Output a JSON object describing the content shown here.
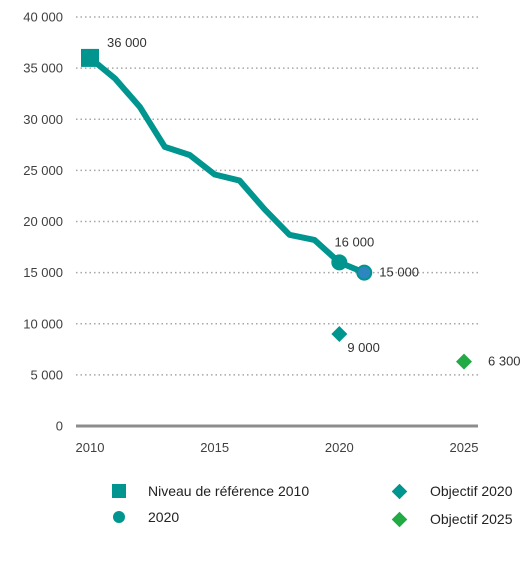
{
  "chart_data": {
    "type": "line",
    "ylim": [
      0,
      40000
    ],
    "xlim": [
      2010,
      2025
    ],
    "y_ticks": [
      0,
      5000,
      10000,
      15000,
      20000,
      25000,
      30000,
      35000,
      40000
    ],
    "y_tick_labels": [
      "0",
      "5 000",
      "10 000",
      "15 000",
      "20 000",
      "25 000",
      "30 000",
      "35 000",
      "40 000"
    ],
    "x_ticks": [
      2010,
      2015,
      2020,
      2025
    ],
    "x_tick_labels": [
      "2010",
      "2015",
      "2020",
      "2025"
    ],
    "grid": "horizontal-dotted",
    "series": [
      {
        "x": [
          2010,
          2011,
          2012,
          2013,
          2014,
          2015,
          2016,
          2017,
          2018,
          2019,
          2020,
          2021
        ],
        "y": [
          36000,
          34000,
          31200,
          27300,
          26500,
          24600,
          24000,
          21200,
          18700,
          18200,
          16000,
          15000
        ],
        "color": "#00958f"
      }
    ],
    "markers": [
      {
        "legend": "Niveau de référence 2010",
        "shape": "square",
        "color": "#00958f",
        "x": 2010,
        "y": 36000,
        "label": "36 000",
        "label_pos": "above-right"
      },
      {
        "legend": "2020",
        "shape": "circle",
        "color": "#00958f",
        "x": 2020,
        "y": 16000,
        "label": "16 000",
        "label_pos": "above"
      },
      {
        "shape": "circle",
        "color": "#2e86c1",
        "x": 2021,
        "y": 15000,
        "label": "15 000",
        "label_pos": "right"
      },
      {
        "legend": "Objectif 2020",
        "shape": "diamond",
        "color": "#00958f",
        "x": 2020,
        "y": 9000,
        "label": "9 000",
        "label_pos": "below-right"
      },
      {
        "legend": "Objectif 2025",
        "shape": "diamond",
        "color": "#22aa44",
        "x": 2025,
        "y": 6300,
        "label": "6 300",
        "label_pos": "right"
      }
    ],
    "legend_placement": "bottom"
  },
  "legend": [
    {
      "label": "Niveau de référence 2010",
      "shape": "square",
      "color": "#00958f"
    },
    {
      "label": "Objectif 2020",
      "shape": "diamond",
      "color": "#00958f"
    },
    {
      "label": "2020",
      "shape": "circle",
      "color": "#00958f"
    },
    {
      "label": "Objectif 2025",
      "shape": "diamond",
      "color": "#22aa44"
    }
  ]
}
